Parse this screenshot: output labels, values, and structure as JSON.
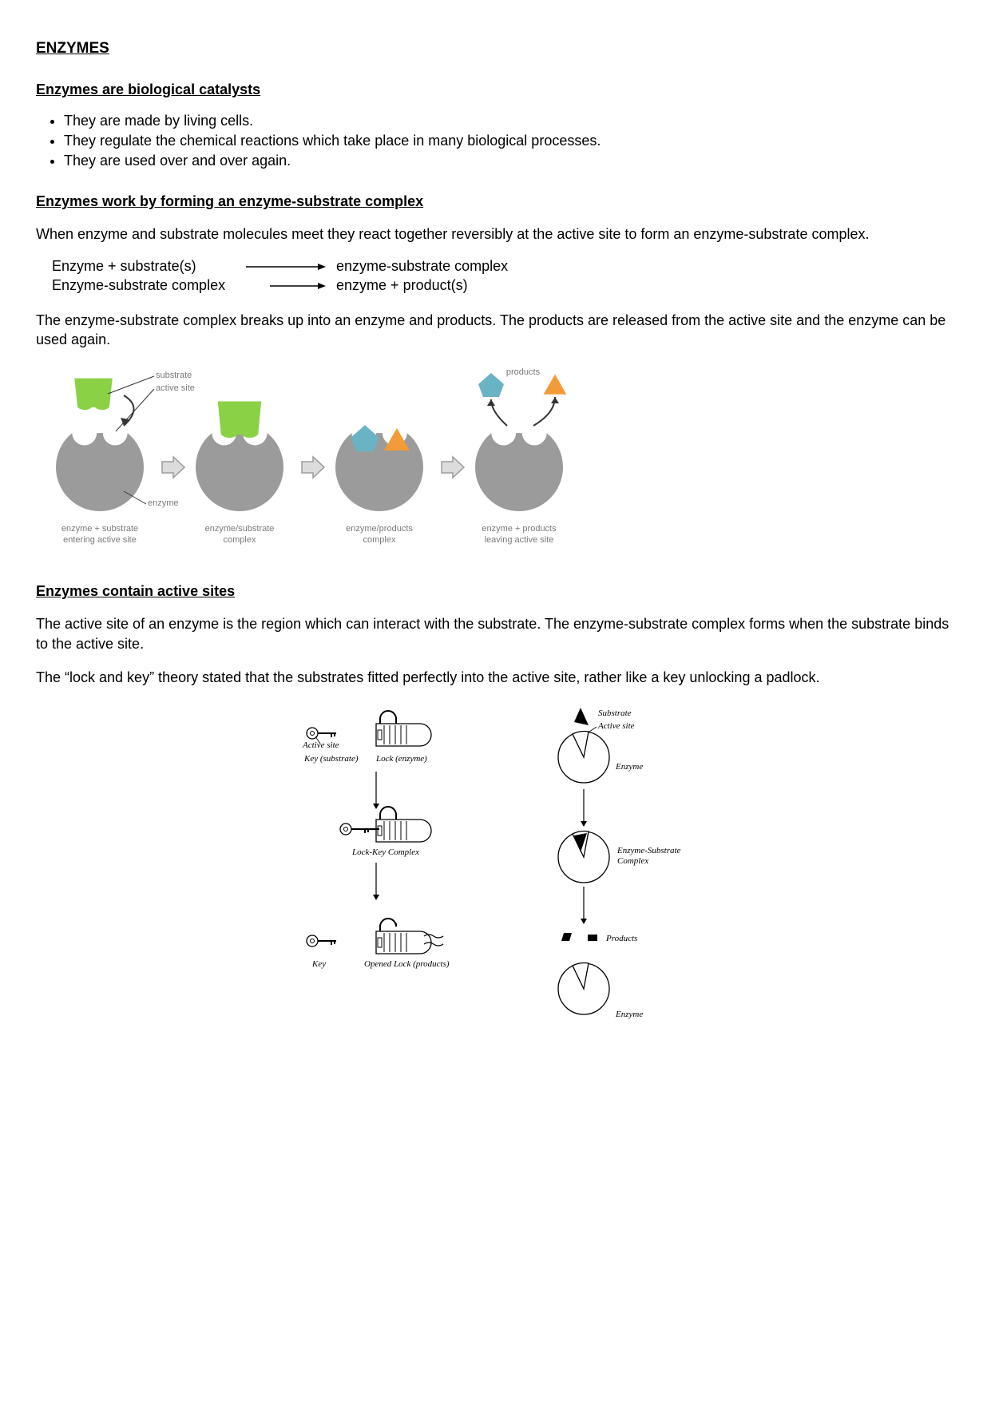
{
  "title": "ENZYMES",
  "section1": {
    "heading": "Enzymes are biological catalysts",
    "bullets": [
      "They are made by living cells.",
      "They regulate the chemical reactions which take place in many biological processes.",
      "They are used over and over again."
    ]
  },
  "section2": {
    "heading": "Enzymes work by forming an enzyme-substrate complex",
    "intro": "When enzyme and substrate molecules meet they react together reversibly at the active site to form an enzyme-substrate complex.",
    "eq1_lhs": "Enzyme + substrate(s)",
    "eq1_rhs": "enzyme-substrate complex",
    "eq2_lhs": "Enzyme-substrate complex",
    "eq2_rhs": "enzyme + product(s)",
    "outro": "The enzyme-substrate complex breaks up into an enzyme and products.  The products are released from the active site and the enzyme can be used again."
  },
  "diagram1": {
    "colors": {
      "enzyme": "#9b9b9b",
      "substrate": "#8bd146",
      "product_a": "#6ab3c4",
      "product_b": "#f29b38",
      "arrow_fill": "#dcdcdc",
      "arrow_stroke": "#9b9b9b",
      "label": "#7a7a7a",
      "pointer": "#333333"
    },
    "top_labels": {
      "substrate": "substrate",
      "active_site": "active site",
      "products": "products",
      "enzyme": "enzyme"
    },
    "stage_labels": [
      "enzyme + substrate entering active site",
      "enzyme/substrate complex",
      "enzyme/products complex",
      "enzyme + products leaving active site"
    ]
  },
  "section3": {
    "heading": "Enzymes contain active sites",
    "para1": "The active site of an enzyme is the region which can interact with the substrate.  The enzyme-substrate complex forms when the substrate binds to the active site.",
    "para2": "The “lock and key” theory stated that the substrates fitted perfectly into the active site, rather like a key unlocking a padlock."
  },
  "diagram2": {
    "colors": {
      "stroke": "#000000",
      "fill": "#ffffff"
    },
    "labels": {
      "active_site": "Active site",
      "key_substrate": "Key (substrate)",
      "lock_enzyme": "Lock (enzyme)",
      "lock_key_complex": "Lock-Key Complex",
      "key": "Key",
      "opened_lock": "Opened Lock (products)",
      "substrate": "Substrate",
      "enzyme": "Enzyme",
      "es_complex_1": "Enzyme-Substrate",
      "es_complex_2": "Complex",
      "products": "Products"
    }
  }
}
